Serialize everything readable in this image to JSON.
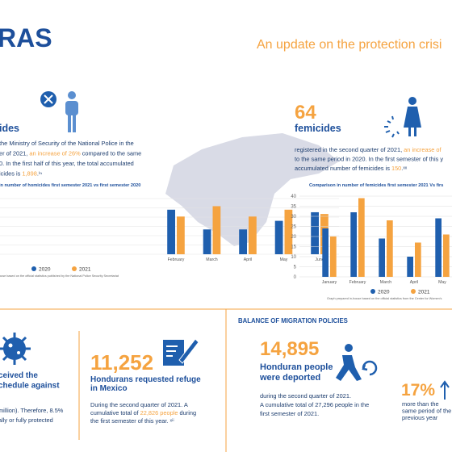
{
  "header": {
    "title": "RAS",
    "subtitle": "An update on the protection crisi"
  },
  "homicides": {
    "heading": "ides",
    "text": [
      [
        "the Ministry of Security of the National Police in the"
      ],
      [
        "er of 2021, ",
        {
          "text": "an increase of 26%",
          "highlight": true
        },
        " compared to the same"
      ],
      [
        "0. In the first half of this year, the total accumulated"
      ],
      [
        "icides is ",
        {
          "text": "1,898",
          "highlight": true
        },
        ".ⁱⁿ"
      ]
    ],
    "chart": {
      "type": "bar",
      "title": "in number of homicides first semester 2021 vs first semester 2020",
      "categories": [
        "February",
        "March",
        "April",
        "May",
        "June"
      ],
      "series": [
        {
          "name": "2020",
          "color": "#1f5fae",
          "values": [
            280,
            156,
            156,
            210,
            264
          ]
        },
        {
          "name": "2021",
          "color": "#f5a340",
          "values": [
            237,
            302,
            237,
            280,
            253
          ]
        }
      ],
      "ylim": [
        0,
        350
      ],
      "grid": true,
      "source": "ouse based on the official statistics published by the National Police Security Secretariat"
    }
  },
  "femicides": {
    "number": "64",
    "heading": "femicides",
    "text": [
      [
        "registered in the second quarter of 2021, ",
        {
          "text": "an increase of",
          "highlight": true
        }
      ],
      [
        "to the same period in 2020. In the first semester of this y"
      ],
      [
        "accumulated number of femicides is ",
        {
          "text": "150",
          "highlight": true
        },
        ".ˣˣ"
      ]
    ],
    "chart": {
      "type": "bar",
      "title": "Comparison in number of femicides first semester 2021 Vs firs",
      "categories": [
        "January",
        "February",
        "March",
        "April",
        "May"
      ],
      "series": [
        {
          "name": "2020",
          "color": "#1f5fae",
          "values": [
            24,
            32,
            19,
            10,
            29
          ]
        },
        {
          "name": "2021",
          "color": "#f5a340",
          "values": [
            20,
            39,
            28,
            17,
            21
          ]
        }
      ],
      "ylim": [
        0,
        40
      ],
      "yticks": [
        0,
        5,
        10,
        15,
        20,
        25,
        30,
        35,
        40
      ],
      "grid": true,
      "source": "Graph prepared in-house based on the official statistics from the Center for Women's"
    }
  },
  "vaccines": {
    "heading": [
      "ceived the",
      "chedule against"
    ],
    "text": [
      [
        "million). Therefore, 8.5%"
      ],
      [
        "ally  or  fully  protected"
      ]
    ]
  },
  "refuge": {
    "number": "11,252",
    "heading": [
      "Hondurans requested refuge",
      "in Mexico"
    ],
    "text": [
      [
        "During the second quarter of 2021. A"
      ],
      [
        "cumulative total of ",
        {
          "text": "22,826 people",
          "highlight": true
        },
        " during"
      ],
      [
        "the first semester of this year. ˣⁱⁱ"
      ]
    ]
  },
  "migration": {
    "title": "BALANCE OF MIGRATION POLICIES",
    "number": "14,895",
    "heading": [
      "Honduran people",
      "were deported"
    ],
    "text": [
      [
        "during the second quarter of 2021."
      ],
      [
        "A cumulative total of 27,296 people in the"
      ],
      [
        "first semester of 2021."
      ]
    ],
    "change": "17%",
    "change_text": [
      "more than the",
      "same period of the",
      "previous year"
    ]
  }
}
